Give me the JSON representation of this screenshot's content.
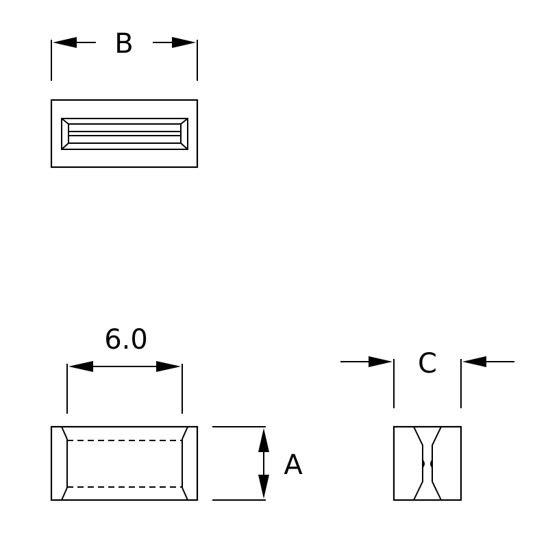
{
  "colors": {
    "line": "#000000",
    "background": "#ffffff"
  },
  "dimensions": {
    "top_width_label": "B",
    "front_width_label": "6.0",
    "front_height_label": "A",
    "side_width_label": "C"
  }
}
